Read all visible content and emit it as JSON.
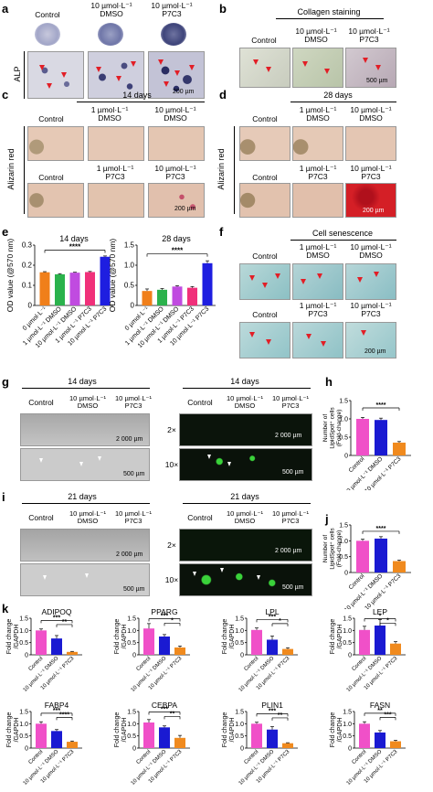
{
  "panels": {
    "a": {
      "letter": "a",
      "row_label": "ALP",
      "headers": [
        "Control",
        "10 µmol·L⁻¹\nDMSO",
        "10 µmol·L⁻¹\nP7C3"
      ],
      "scale": "200 µm"
    },
    "b": {
      "letter": "b",
      "title": "Collagen staining",
      "headers": [
        "Control",
        "10 µmol·L⁻¹\nDMSO",
        "10 µmol·L⁻¹\nP7C3"
      ],
      "scale": "500 µm"
    },
    "c": {
      "letter": "c",
      "title": "14 days",
      "row_label": "Alizarin red",
      "headers_top": [
        "Control",
        "1 µmol·L⁻¹\nDMSO",
        "10 µmol·L⁻¹\nDMSO"
      ],
      "headers_bottom": [
        "Control",
        "1 µmol·L⁻¹\nP7C3",
        "10 µmol·L⁻¹\nP7C3"
      ],
      "scale": "200 µm"
    },
    "d": {
      "letter": "d",
      "title": "28 days",
      "row_label": "Alizarin red",
      "headers_top": [
        "Control",
        "1 µmol·L⁻¹\nDMSO",
        "10 µmol·L⁻¹\nDMSO"
      ],
      "headers_bottom": [
        "Control",
        "1 µmol·L⁻¹\nP7C3",
        "10 µmol·L⁻¹\nP7C3"
      ],
      "scale": "200 µm"
    },
    "e": {
      "letter": "e"
    },
    "f": {
      "letter": "f",
      "title": "Cell senescence",
      "headers_top": [
        "Control",
        "1 µmol·L⁻¹\nDMSO",
        "10 µmol·L⁻¹\nDMSO"
      ],
      "headers_bottom": [
        "Control",
        "1 µmol·L⁻¹\nP7C3",
        "10 µmol·L⁻¹\nP7C3"
      ],
      "scale": "200 µm"
    },
    "g": {
      "letter": "g",
      "left_title": "14 days",
      "right_title": "14 days",
      "headers": [
        "Control",
        "10 µmol·L⁻¹\nDMSO",
        "10 µmol·L⁻¹\nP7C3"
      ],
      "row1": "2×",
      "row2": "10×",
      "scale1": "2 000 µm",
      "scale2": "500 µm"
    },
    "h": {
      "letter": "h"
    },
    "i": {
      "letter": "i",
      "left_title": "21 days",
      "right_title": "21 days",
      "headers": [
        "Control",
        "10 µmol·L⁻¹\nDMSO",
        "10 µmol·L⁻¹\nP7C3"
      ],
      "row1": "2×",
      "row2": "10×",
      "scale1": "2 000 µm",
      "scale2": "500 µm"
    },
    "j": {
      "letter": "j"
    },
    "k": {
      "letter": "k"
    }
  },
  "colors": {
    "control": "#f050c8",
    "dmso": "#1a1ad2",
    "p7c3": "#f08a1e",
    "zero": "#f07f1a",
    "d1": "#2bb24c",
    "d10": "#c04be0",
    "p1": "#f0307a",
    "p10": "#1e1ee0"
  },
  "chart_data": [
    {
      "type": "bar",
      "title": "14 days",
      "ylabel": "OD value (@570 nm)",
      "ylim": [
        0,
        0.3
      ],
      "yticks": [
        "0",
        "0.1",
        "0.2",
        "0.3"
      ],
      "categories": [
        "0 µmol·L⁻¹",
        "1 µmol·L⁻¹ DMSO",
        "10 µmol·L⁻¹ DMSO",
        "1 µmol·L⁻¹ P7C3",
        "10 µmol·L⁻¹ P7C3"
      ],
      "values": [
        0.165,
        0.155,
        0.163,
        0.166,
        0.242
      ],
      "errors": [
        0.003,
        0.003,
        0.002,
        0.003,
        0.004
      ],
      "significance": "****"
    },
    {
      "type": "bar",
      "title": "28 days",
      "ylabel": "OD value (@570 nm)",
      "ylim": [
        0,
        1.5
      ],
      "yticks": [
        "0",
        "0.5",
        "1.0",
        "1.5"
      ],
      "categories": [
        "0 µmol·L⁻¹",
        "1 µmol·L⁻¹ DMSO",
        "10 µmol·L⁻¹ DMSO",
        "1 µmol·L⁻¹ P7C3",
        "10 µmol·L⁻¹ P7C3"
      ],
      "values": [
        0.36,
        0.39,
        0.47,
        0.44,
        1.05
      ],
      "errors": [
        0.05,
        0.03,
        0.02,
        0.03,
        0.06
      ],
      "significance": "****"
    },
    {
      "type": "bar",
      "ylabel": "Number of LipidSpot⁺ cells (Fold-change)",
      "ylim": [
        0,
        1.5
      ],
      "yticks": [
        "0",
        "0.5",
        "1.0",
        "1.5"
      ],
      "categories": [
        "Control",
        "10 µmol·L⁻¹ DMSO",
        "10 µmol·L⁻¹ P7C3"
      ],
      "values": [
        1.0,
        0.97,
        0.35
      ],
      "errors": [
        0.04,
        0.05,
        0.03
      ],
      "significance": [
        "****"
      ]
    },
    {
      "type": "bar",
      "ylabel": "Number of LipidSpot⁺ cells (Fold-change)",
      "ylim": [
        0,
        1.5
      ],
      "yticks": [
        "0",
        "0.5",
        "1.0",
        "1.5"
      ],
      "categories": [
        "Control",
        "10 µmol·L⁻¹ DMSO",
        "10 µmol·L⁻¹ P7C3"
      ],
      "values": [
        1.0,
        1.07,
        0.36
      ],
      "errors": [
        0.05,
        0.06,
        0.03
      ],
      "significance": [
        "****"
      ]
    },
    {
      "type": "bar",
      "title": "ADIPOQ",
      "ylabel": "Fold change /GAPDH",
      "ylim": [
        0,
        1.5
      ],
      "yticks": [
        "0",
        "0.5",
        "1.0",
        "1.5"
      ],
      "categories": [
        "Control",
        "10 µmol·L⁻¹ DMSO",
        "10 µmol·L⁻¹ P7C3"
      ],
      "values": [
        1.0,
        0.67,
        0.12
      ],
      "errors": [
        0.06,
        0.12,
        0.02
      ],
      "significance": [
        "***",
        "**"
      ]
    },
    {
      "type": "bar",
      "title": "PPARG",
      "ylabel": "Fold change /GAPDH",
      "ylim": [
        0,
        1.5
      ],
      "yticks": [
        "0",
        "0.5",
        "1.0",
        "1.5"
      ],
      "categories": [
        "Control",
        "10 µmol·L⁻¹ DMSO",
        "10 µmol·L⁻¹ P7C3"
      ],
      "values": [
        1.08,
        0.75,
        0.3
      ],
      "errors": [
        0.2,
        0.08,
        0.06
      ],
      "significance": [
        "***",
        "*"
      ]
    },
    {
      "type": "bar",
      "title": "LPL",
      "ylabel": "Fold change /GAPDH",
      "ylim": [
        0,
        1.5
      ],
      "yticks": [
        "0",
        "0.5",
        "1.0",
        "1.5"
      ],
      "categories": [
        "Control",
        "10 µmol·L⁻¹ DMSO",
        "10 µmol·L⁻¹ P7C3"
      ],
      "values": [
        1.02,
        0.62,
        0.24
      ],
      "errors": [
        0.08,
        0.15,
        0.05
      ],
      "significance": [
        "***",
        "*"
      ]
    },
    {
      "type": "bar",
      "title": "LEP",
      "ylabel": "Fold change /GAPDH",
      "ylim": [
        0,
        1.5
      ],
      "yticks": [
        "0",
        "0.5",
        "1.0",
        "1.5"
      ],
      "categories": [
        "Control",
        "10 µmol·L⁻¹ DMSO",
        "10 µmol·L⁻¹ P7C3"
      ],
      "values": [
        1.02,
        1.2,
        0.46
      ],
      "errors": [
        0.15,
        0.25,
        0.08
      ],
      "significance": [
        "*",
        "*"
      ]
    },
    {
      "type": "bar",
      "title": "FABP4",
      "ylabel": "Fold change /GAPDH",
      "ylim": [
        0,
        1.5
      ],
      "yticks": [
        "0",
        "0.5",
        "1.0",
        "1.5"
      ],
      "categories": [
        "Control",
        "10 µmol·L⁻¹ DMSO",
        "10 µmol·L⁻¹ P7C3"
      ],
      "values": [
        1.0,
        0.7,
        0.26
      ],
      "errors": [
        0.08,
        0.06,
        0.03
      ],
      "significance": [
        "***",
        "****"
      ]
    },
    {
      "type": "bar",
      "title": "CEBPA",
      "ylabel": "Fold change /GAPDH",
      "ylim": [
        0,
        1.5
      ],
      "yticks": [
        "0",
        "0.5",
        "1.0",
        "1.5"
      ],
      "categories": [
        "Control",
        "10 µmol·L⁻¹ DMSO",
        "10 µmol·L⁻¹ P7C3"
      ],
      "values": [
        1.05,
        0.85,
        0.42
      ],
      "errors": [
        0.12,
        0.06,
        0.1
      ],
      "significance": [
        "***",
        "**"
      ]
    },
    {
      "type": "bar",
      "title": "PLIN1",
      "ylabel": "Fold change /GAPDH",
      "ylim": [
        0,
        1.5
      ],
      "yticks": [
        "0",
        "0.5",
        "1.0",
        "1.5"
      ],
      "categories": [
        "Control",
        "10 µmol·L⁻¹ DMSO",
        "10 µmol·L⁻¹ P7C3"
      ],
      "values": [
        1.0,
        0.76,
        0.2
      ],
      "errors": [
        0.06,
        0.12,
        0.02
      ],
      "significance": [
        "***",
        "**"
      ]
    },
    {
      "type": "bar",
      "title": "FASN",
      "ylabel": "Fold change /GAPDH",
      "ylim": [
        0,
        1.5
      ],
      "yticks": [
        "0",
        "0.5",
        "1.0",
        "1.5"
      ],
      "categories": [
        "Control",
        "10 µmol·L⁻¹ DMSO",
        "10 µmol·L⁻¹ P7C3"
      ],
      "values": [
        1.0,
        0.64,
        0.28
      ],
      "errors": [
        0.08,
        0.08,
        0.04
      ],
      "significance": [
        "**",
        "***"
      ]
    }
  ]
}
